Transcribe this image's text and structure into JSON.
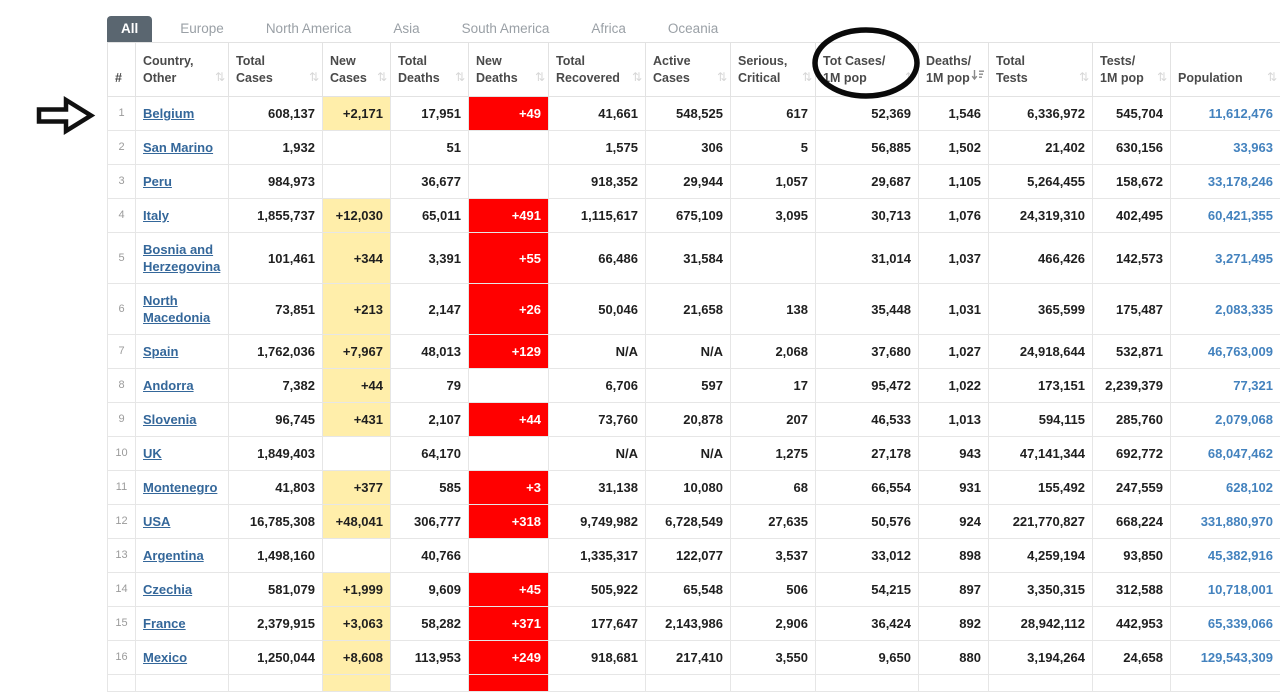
{
  "tabs": [
    {
      "label": "All",
      "active": true
    },
    {
      "label": "Europe",
      "active": false
    },
    {
      "label": "North America",
      "active": false
    },
    {
      "label": "Asia",
      "active": false
    },
    {
      "label": "South America",
      "active": false
    },
    {
      "label": "Africa",
      "active": false
    },
    {
      "label": "Oceania",
      "active": false
    }
  ],
  "table": {
    "columns": [
      {
        "key": "rank",
        "label": "#",
        "sort": null,
        "class": "rank"
      },
      {
        "key": "country",
        "label": "Country,\nOther",
        "sort": "both",
        "class": "country"
      },
      {
        "key": "total_cases",
        "label": "Total\nCases",
        "sort": "both",
        "class": "num"
      },
      {
        "key": "new_cases",
        "label": "New\nCases",
        "sort": "both",
        "class": "newcases"
      },
      {
        "key": "total_deaths",
        "label": "Total\nDeaths",
        "sort": "both",
        "class": "num"
      },
      {
        "key": "new_deaths",
        "label": "New\nDeaths",
        "sort": "both",
        "class": "newdeaths"
      },
      {
        "key": "total_recovered",
        "label": "Total\nRecovered",
        "sort": "both",
        "class": "num"
      },
      {
        "key": "active_cases",
        "label": "Active\nCases",
        "sort": "both",
        "class": "num"
      },
      {
        "key": "serious_critical",
        "label": "Serious,\nCritical",
        "sort": "both",
        "class": "num"
      },
      {
        "key": "tot_cases_1m_pop",
        "label": "Tot Cases/\n1M pop",
        "sort": "both",
        "class": "num",
        "circled": true
      },
      {
        "key": "deaths_1m_pop",
        "label": "Deaths/\n1M pop",
        "sort": "desc",
        "class": "num"
      },
      {
        "key": "total_tests",
        "label": "Total\nTests",
        "sort": "both",
        "class": "num"
      },
      {
        "key": "tests_1m_pop",
        "label": "Tests/\n1M pop",
        "sort": "both",
        "class": "num"
      },
      {
        "key": "population",
        "label": "Population",
        "sort": "both",
        "class": "pop"
      }
    ],
    "rows": [
      {
        "cells": [
          "1",
          "Belgium",
          "608,137",
          "+2,171",
          "17,951",
          "+49",
          "41,661",
          "548,525",
          "617",
          "52,369",
          "1,546",
          "6,336,972",
          "545,704",
          "11,612,476"
        ]
      },
      {
        "cells": [
          "2",
          "San Marino",
          "1,932",
          "",
          "51",
          "",
          "1,575",
          "306",
          "5",
          "56,885",
          "1,502",
          "21,402",
          "630,156",
          "33,963"
        ]
      },
      {
        "cells": [
          "3",
          "Peru",
          "984,973",
          "",
          "36,677",
          "",
          "918,352",
          "29,944",
          "1,057",
          "29,687",
          "1,105",
          "5,264,455",
          "158,672",
          "33,178,246"
        ]
      },
      {
        "cells": [
          "4",
          "Italy",
          "1,855,737",
          "+12,030",
          "65,011",
          "+491",
          "1,115,617",
          "675,109",
          "3,095",
          "30,713",
          "1,076",
          "24,319,310",
          "402,495",
          "60,421,355"
        ]
      },
      {
        "cells": [
          "5",
          "Bosnia and Herzegovina",
          "101,461",
          "+344",
          "3,391",
          "+55",
          "66,486",
          "31,584",
          "",
          "31,014",
          "1,037",
          "466,426",
          "142,573",
          "3,271,495"
        ]
      },
      {
        "cells": [
          "6",
          "North Macedonia",
          "73,851",
          "+213",
          "2,147",
          "+26",
          "50,046",
          "21,658",
          "138",
          "35,448",
          "1,031",
          "365,599",
          "175,487",
          "2,083,335"
        ]
      },
      {
        "cells": [
          "7",
          "Spain",
          "1,762,036",
          "+7,967",
          "48,013",
          "+129",
          "N/A",
          "N/A",
          "2,068",
          "37,680",
          "1,027",
          "24,918,644",
          "532,871",
          "46,763,009"
        ]
      },
      {
        "cells": [
          "8",
          "Andorra",
          "7,382",
          "+44",
          "79",
          "",
          "6,706",
          "597",
          "17",
          "95,472",
          "1,022",
          "173,151",
          "2,239,379",
          "77,321"
        ]
      },
      {
        "cells": [
          "9",
          "Slovenia",
          "96,745",
          "+431",
          "2,107",
          "+44",
          "73,760",
          "20,878",
          "207",
          "46,533",
          "1,013",
          "594,115",
          "285,760",
          "2,079,068"
        ]
      },
      {
        "cells": [
          "10",
          "UK",
          "1,849,403",
          "",
          "64,170",
          "",
          "N/A",
          "N/A",
          "1,275",
          "27,178",
          "943",
          "47,141,344",
          "692,772",
          "68,047,462"
        ]
      },
      {
        "cells": [
          "11",
          "Montenegro",
          "41,803",
          "+377",
          "585",
          "+3",
          "31,138",
          "10,080",
          "68",
          "66,554",
          "931",
          "155,492",
          "247,559",
          "628,102"
        ]
      },
      {
        "cells": [
          "12",
          "USA",
          "16,785,308",
          "+48,041",
          "306,777",
          "+318",
          "9,749,982",
          "6,728,549",
          "27,635",
          "50,576",
          "924",
          "221,770,827",
          "668,224",
          "331,880,970"
        ]
      },
      {
        "cells": [
          "13",
          "Argentina",
          "1,498,160",
          "",
          "40,766",
          "",
          "1,335,317",
          "122,077",
          "3,537",
          "33,012",
          "898",
          "4,259,194",
          "93,850",
          "45,382,916"
        ]
      },
      {
        "cells": [
          "14",
          "Czechia",
          "581,079",
          "+1,999",
          "9,609",
          "+45",
          "505,922",
          "65,548",
          "506",
          "54,215",
          "897",
          "3,350,315",
          "312,588",
          "10,718,001"
        ]
      },
      {
        "cells": [
          "15",
          "France",
          "2,379,915",
          "+3,063",
          "58,282",
          "+371",
          "177,647",
          "2,143,986",
          "2,906",
          "36,424",
          "892",
          "28,942,112",
          "442,953",
          "65,339,066"
        ]
      },
      {
        "cells": [
          "16",
          "Mexico",
          "1,250,044",
          "+8,608",
          "113,953",
          "+249",
          "918,681",
          "217,410",
          "3,550",
          "9,650",
          "880",
          "3,194,264",
          "24,658",
          "129,543,309"
        ]
      },
      {
        "cells": [
          "",
          "",
          "",
          "",
          "",
          "",
          "",
          "",
          "",
          "",
          "",
          "",
          "",
          ""
        ],
        "partial": true
      }
    ]
  },
  "annotations": {
    "circle_target": "tot_cases_1m_pop header",
    "arrow_target": "row 1 Belgium"
  },
  "colors": {
    "new_cases_bg": "#FFEEAA",
    "new_deaths_bg": "#FF0000",
    "new_deaths_text": "#FFFFFF",
    "country_link": "#34679A",
    "population_text": "#4382BE",
    "active_tab_bg": "#5A6670",
    "active_tab_text": "#FFFFFF",
    "inactive_tab_text": "#9AA0A6",
    "annotation": "#0A0A0A"
  }
}
